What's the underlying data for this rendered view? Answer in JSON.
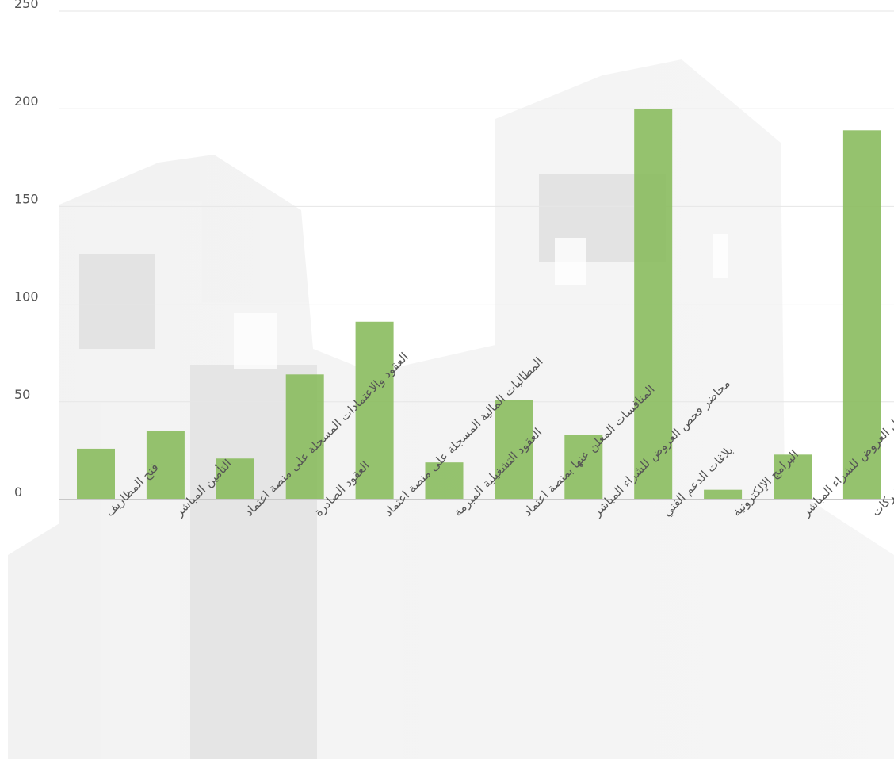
{
  "chart_data": {
    "type": "bar",
    "categories": [
      "فتح المظاريف",
      "التأمين المباشر",
      "العقود والاعتمادات المسجلة على منصة اعتماد",
      "العقود الصادرة",
      "المطالبات المالية المسجلة على منصة اعتماد",
      "العقود التشغيلية المبرمة",
      "المنافسات المعلن عنها بمنصة اعتماد",
      "محاضر فحص العروض للشراء المباشر",
      "بلاغات الدعم الفني",
      "البرامج الإلكترونية",
      "محاضر تحليل العروض للشراء المباشر",
      "الدعوات المرسلة للشركات"
    ],
    "values": [
      26,
      35,
      21,
      64,
      91,
      19,
      51,
      33,
      200,
      5,
      23,
      189
    ],
    "ylim": [
      0,
      250
    ],
    "yticks": [
      "0",
      "50",
      "100",
      "150",
      "200",
      "250"
    ],
    "grid": true,
    "legend": "none",
    "colors": {
      "bar": "#8cbd62",
      "grid": "#e6e6e6",
      "axis": "#c8c8c8",
      "tick_text": "#555555",
      "category_text": "#555555"
    }
  }
}
